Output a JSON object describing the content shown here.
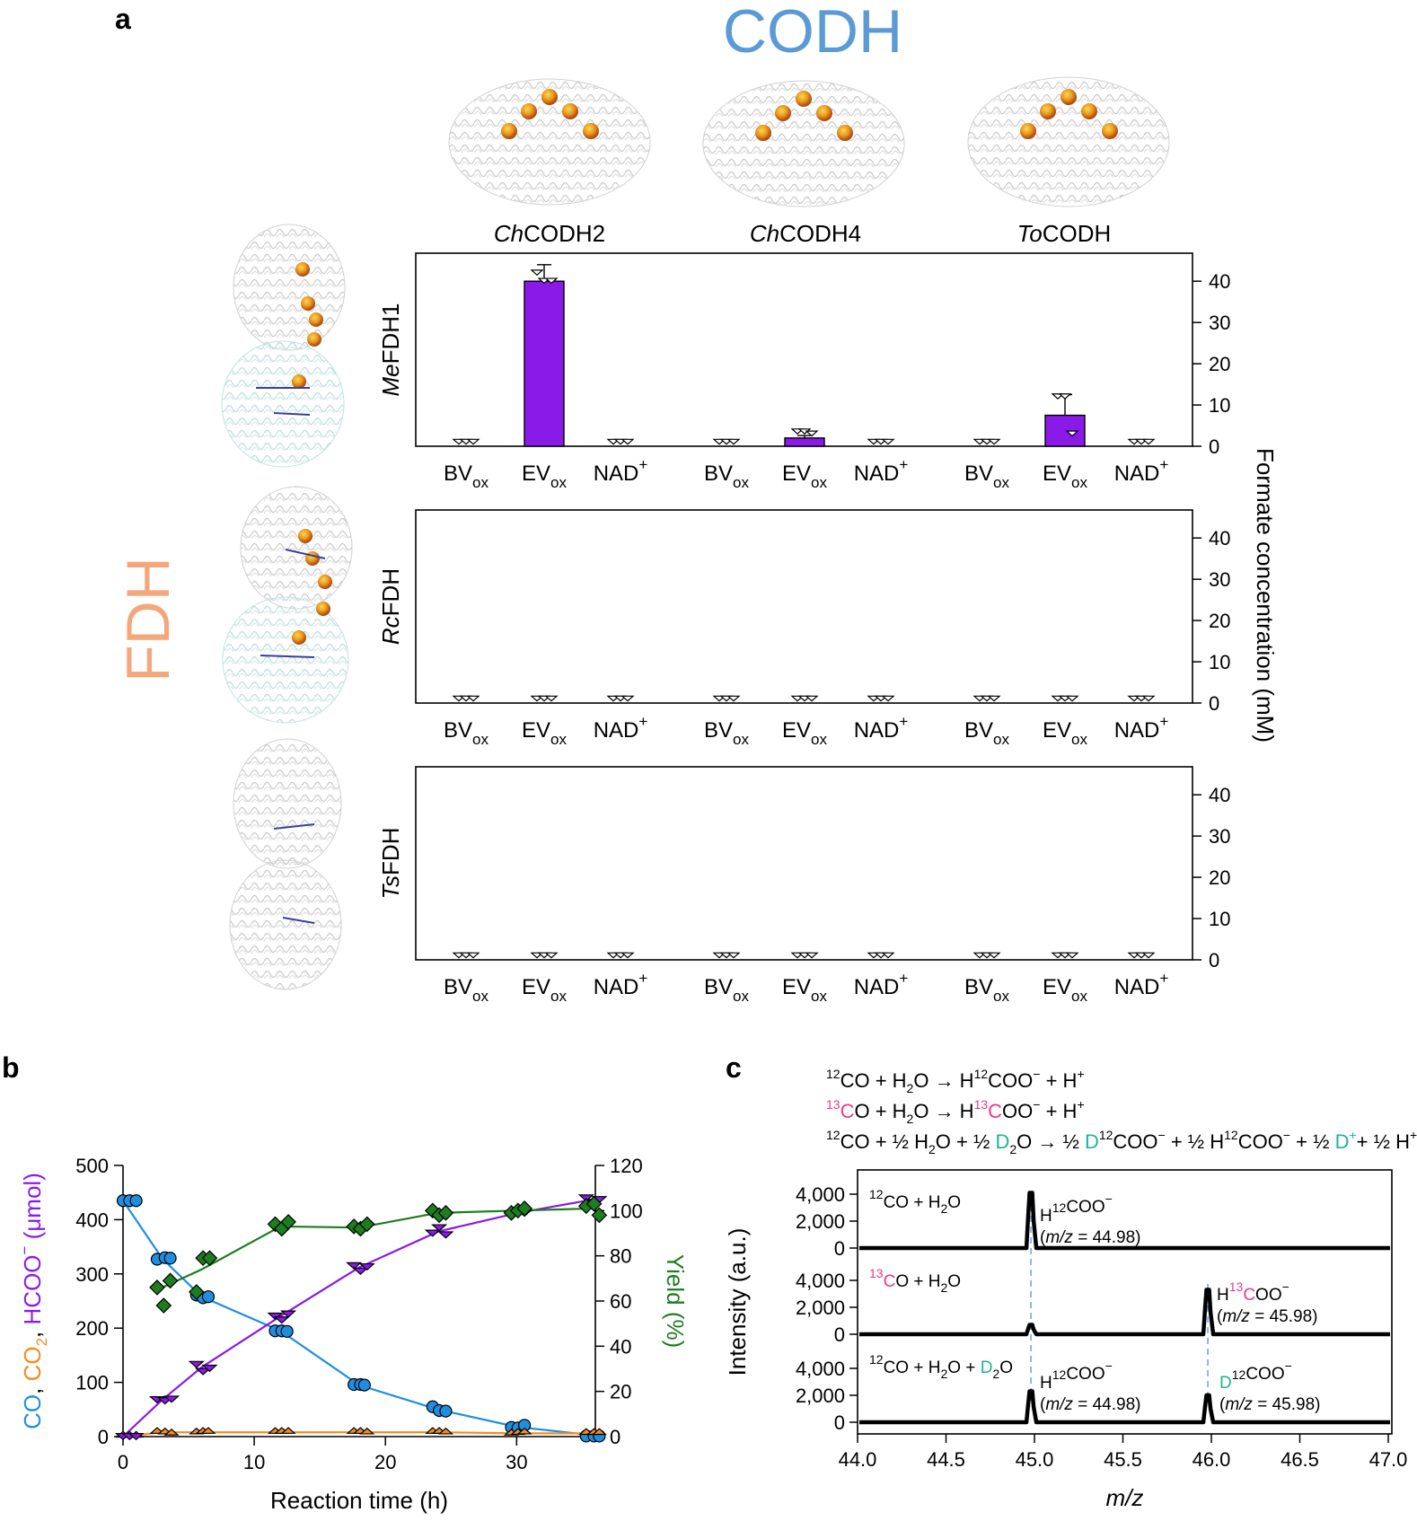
{
  "panel_labels": {
    "a": "a",
    "b": "b",
    "c": "c"
  },
  "groups": {
    "codh": "CODH",
    "fdh": "FDH"
  },
  "codh_names": [
    {
      "italic": "Ch",
      "rest": "CODH2"
    },
    {
      "italic": "Ch",
      "rest": "CODH4"
    },
    {
      "italic": "To",
      "rest": "CODH"
    }
  ],
  "fdh_names": [
    {
      "italic": "Me",
      "rest": "FDH1"
    },
    {
      "italic": "Rc",
      "rest": "FDH"
    },
    {
      "italic": "Ts",
      "rest": "FDH"
    }
  ],
  "mediators": [
    {
      "base": "BV",
      "script": "ox",
      "pos": "sub"
    },
    {
      "base": "EV",
      "script": "ox",
      "pos": "sub"
    },
    {
      "base": "NAD",
      "script": "+",
      "pos": "sup"
    }
  ],
  "colors": {
    "codh": "#5b9bd5",
    "fdh": "#f4a77a",
    "formate": "#8a1ae8",
    "co": "#1f8ee0",
    "co2": "#f58a1f",
    "yield": "#1e7d1e",
    "pink": "#e8398c",
    "teal": "#1fb39a",
    "dashed": "#5b8fd6"
  },
  "chart_data": [
    {
      "panel": "a",
      "type": "bar",
      "title": "",
      "ylabel": "Formate concentration (mM)",
      "ylim": [
        0,
        45
      ],
      "yticks": [
        0,
        10,
        20,
        30,
        40
      ],
      "categories": [
        "BVox",
        "EVox",
        "NAD+",
        "BVox",
        "EVox",
        "NAD+",
        "BVox",
        "EVox",
        "NAD+"
      ],
      "series": [
        {
          "name": "MeFDH1",
          "values": [
            0,
            40,
            0,
            0,
            2,
            0,
            0,
            7.5,
            0
          ],
          "errors": [
            0,
            4,
            0,
            0,
            0.6,
            0,
            0,
            5,
            0
          ],
          "points": [
            [
              0,
              0,
              0
            ],
            [
              41,
              39,
              39
            ],
            [
              0,
              0,
              0
            ],
            [
              0,
              0,
              0
            ],
            [
              2.5,
              2.5,
              2
            ],
            [
              0,
              0,
              0
            ],
            [
              0,
              0,
              0
            ],
            [
              11,
              11,
              2
            ],
            [
              0,
              0,
              0
            ]
          ]
        },
        {
          "name": "RcFDH",
          "values": [
            0,
            0,
            0,
            0,
            0,
            0,
            0,
            0,
            0
          ],
          "errors": [
            0,
            0,
            0,
            0,
            0,
            0,
            0,
            0,
            0
          ],
          "points": [
            [
              0,
              0,
              0
            ],
            [
              0,
              0,
              0
            ],
            [
              0,
              0,
              0
            ],
            [
              0,
              0,
              0
            ],
            [
              0,
              0,
              0
            ],
            [
              0,
              0,
              0
            ],
            [
              0,
              0,
              0
            ],
            [
              0,
              0,
              0
            ],
            [
              0,
              0,
              0
            ]
          ]
        },
        {
          "name": "TsFDH",
          "values": [
            0,
            0,
            0,
            0,
            0,
            0,
            0,
            0,
            0
          ],
          "errors": [
            0,
            0,
            0,
            0,
            0,
            0,
            0,
            0,
            0
          ],
          "points": [
            [
              0,
              0,
              0
            ],
            [
              0,
              0,
              0
            ],
            [
              0,
              0,
              0
            ],
            [
              0,
              0,
              0
            ],
            [
              0,
              0,
              0
            ],
            [
              0,
              0,
              0
            ],
            [
              0,
              0,
              0
            ],
            [
              0,
              0,
              0
            ],
            [
              0,
              0,
              0
            ]
          ]
        }
      ]
    },
    {
      "panel": "b",
      "type": "scatter",
      "title": "",
      "xlabel": "Reaction time (h)",
      "ylabel_parts": [
        "CO",
        ", ",
        "CO",
        "2",
        ", ",
        "HCOO",
        "−",
        " (μmol)"
      ],
      "y2label": "Yield (%)",
      "xlim": [
        0,
        36
      ],
      "xticks": [
        0,
        10,
        20,
        30
      ],
      "ylim": [
        0,
        500
      ],
      "yticks": [
        0,
        100,
        200,
        300,
        400,
        500
      ],
      "y2lim": [
        0,
        120
      ],
      "y2ticks": [
        0,
        20,
        40,
        60,
        80,
        100,
        120
      ],
      "series": [
        {
          "name": "CO",
          "axis": "left",
          "marker": "circle",
          "line": [
            [
              0,
              435
            ],
            [
              3,
              328
            ],
            [
              6,
              258
            ],
            [
              12,
              195
            ],
            [
              18,
              95
            ],
            [
              24,
              50
            ],
            [
              30,
              18
            ],
            [
              36,
              2
            ]
          ],
          "points": [
            [
              0,
              435
            ],
            [
              0.5,
              435
            ],
            [
              1,
              435
            ],
            [
              2.6,
              327
            ],
            [
              3.2,
              330
            ],
            [
              3.6,
              329
            ],
            [
              5.6,
              261
            ],
            [
              6.1,
              256
            ],
            [
              6.5,
              258
            ],
            [
              11.6,
              195
            ],
            [
              12.1,
              195
            ],
            [
              12.5,
              194
            ],
            [
              17.6,
              96
            ],
            [
              18.1,
              96
            ],
            [
              18.4,
              95
            ],
            [
              23.6,
              55
            ],
            [
              24.1,
              48
            ],
            [
              24.6,
              47
            ],
            [
              29.6,
              17
            ],
            [
              30.1,
              16
            ],
            [
              30.6,
              21
            ],
            [
              35.3,
              1
            ],
            [
              35.9,
              1
            ],
            [
              36.3,
              1
            ]
          ]
        },
        {
          "name": "CO2",
          "axis": "left",
          "marker": "triangle-up",
          "line": [
            [
              0,
              0
            ],
            [
              3,
              8
            ],
            [
              6,
              8
            ],
            [
              12,
              8
            ],
            [
              18,
              8
            ],
            [
              24,
              8
            ],
            [
              30,
              6
            ],
            [
              36,
              6
            ]
          ],
          "points": [
            [
              0,
              1
            ],
            [
              0.5,
              1
            ],
            [
              1,
              1
            ],
            [
              2.6,
              8
            ],
            [
              3.2,
              7
            ],
            [
              3.7,
              5
            ],
            [
              5.6,
              7
            ],
            [
              6.1,
              8
            ],
            [
              6.5,
              8
            ],
            [
              11.6,
              8
            ],
            [
              12.1,
              8
            ],
            [
              12.6,
              8
            ],
            [
              17.6,
              8
            ],
            [
              18.1,
              8
            ],
            [
              18.6,
              7
            ],
            [
              23.6,
              8
            ],
            [
              24.1,
              8
            ],
            [
              24.6,
              7
            ],
            [
              29.6,
              5
            ],
            [
              30.1,
              6
            ],
            [
              30.6,
              7
            ],
            [
              35.3,
              6
            ],
            [
              35.9,
              6
            ],
            [
              36.3,
              6
            ]
          ]
        },
        {
          "name": "HCOO-",
          "axis": "left",
          "marker": "triangle-down",
          "line": [
            [
              0,
              0
            ],
            [
              3,
              68
            ],
            [
              6,
              128
            ],
            [
              12,
              222
            ],
            [
              18,
              312
            ],
            [
              24,
              378
            ],
            [
              30,
              412
            ],
            [
              36,
              438
            ]
          ],
          "points": [
            [
              0,
              0
            ],
            [
              0.5,
              0
            ],
            [
              1,
              0
            ],
            [
              2.6,
              68
            ],
            [
              3.2,
              66
            ],
            [
              3.7,
              69
            ],
            [
              5.6,
              133
            ],
            [
              6.1,
              120
            ],
            [
              6.6,
              126
            ],
            [
              11.6,
              222
            ],
            [
              12.1,
              215
            ],
            [
              12.6,
              226
            ],
            [
              17.6,
              315
            ],
            [
              18.1,
              305
            ],
            [
              18.6,
              313
            ],
            [
              23.6,
              375
            ],
            [
              24.1,
              385
            ],
            [
              24.6,
              372
            ],
            [
              29.6,
              410
            ],
            [
              30.1,
              412
            ],
            [
              30.6,
              412
            ],
            [
              35.3,
              440
            ],
            [
              35.9,
              432
            ],
            [
              36.3,
              437
            ]
          ]
        },
        {
          "name": "Yield",
          "axis": "right",
          "marker": "diamond",
          "line": [
            [
              3,
              66
            ],
            [
              6,
              74
            ],
            [
              12,
              93
            ],
            [
              18,
              92.5
            ],
            [
              24,
              99
            ],
            [
              30,
              100
            ],
            [
              36,
              101
            ]
          ],
          "points": [
            [
              2.6,
              66
            ],
            [
              3.1,
              58
            ],
            [
              3.6,
              69
            ],
            [
              5.6,
              64
            ],
            [
              6.1,
              79
            ],
            [
              6.6,
              79
            ],
            [
              11.6,
              94
            ],
            [
              12.1,
              92
            ],
            [
              12.6,
              95
            ],
            [
              17.6,
              93
            ],
            [
              18.1,
              92
            ],
            [
              18.6,
              94
            ],
            [
              23.6,
              100
            ],
            [
              24.1,
              98
            ],
            [
              24.6,
              99
            ],
            [
              29.6,
              99
            ],
            [
              30.1,
              100
            ],
            [
              30.6,
              101
            ],
            [
              35.3,
              102
            ],
            [
              35.9,
              103
            ],
            [
              36.3,
              98
            ]
          ]
        }
      ]
    },
    {
      "panel": "c",
      "type": "line",
      "title": "",
      "xlabel": "m/z",
      "ylabel": "Intensity (a.u.)",
      "xlim": [
        44.0,
        47.0
      ],
      "xticks": [
        "44.0",
        "44.5",
        "45.0",
        "45.5",
        "46.0",
        "46.5",
        "47.0"
      ],
      "yticks": [
        "0",
        "2,000",
        "4,000"
      ],
      "ylim": [
        0,
        4500
      ],
      "series": [
        {
          "name": "12CO + H2O",
          "peaks": [
            [
              44.98,
              4100
            ]
          ]
        },
        {
          "name": "13CO + H2O",
          "peaks": [
            [
              44.98,
              700
            ],
            [
              45.98,
              3300
            ]
          ]
        },
        {
          "name": "12CO + H2O + D2O",
          "peaks": [
            [
              44.98,
              2300
            ],
            [
              45.98,
              2000
            ]
          ]
        }
      ],
      "peak_labels": {
        "p12": "H12COO−",
        "p13": "H13COO−",
        "pd": "D12COO−",
        "mz1": "(m/z = 44.98)",
        "mz2": "(m/z = 45.98)"
      }
    }
  ],
  "reactions": [
    "12CO + H2O → H12COO− + H+",
    "13CO + H2O → H13COO− + H+",
    "12CO + ½ H2O + ½ D2O → ½ D12COO− + ½ H12COO− + ½ D+ + ½ H+"
  ],
  "condition_labels": [
    "12CO + H2O",
    "13CO + H2O",
    "12CO + H2O + D2O"
  ],
  "c_texts": {
    "arrow": "→",
    "plus": "+",
    "half": "½",
    "minus": "−",
    "n12": "12",
    "n13": "13",
    "C": "C",
    "CO": "CO",
    "H": "H",
    "D": "D",
    "O": "O",
    "two": "2",
    "COO": "COO",
    "mz": "m/z",
    "eq": " = 44.98)",
    "eq2": " = 45.98)",
    "lp": "("
  }
}
